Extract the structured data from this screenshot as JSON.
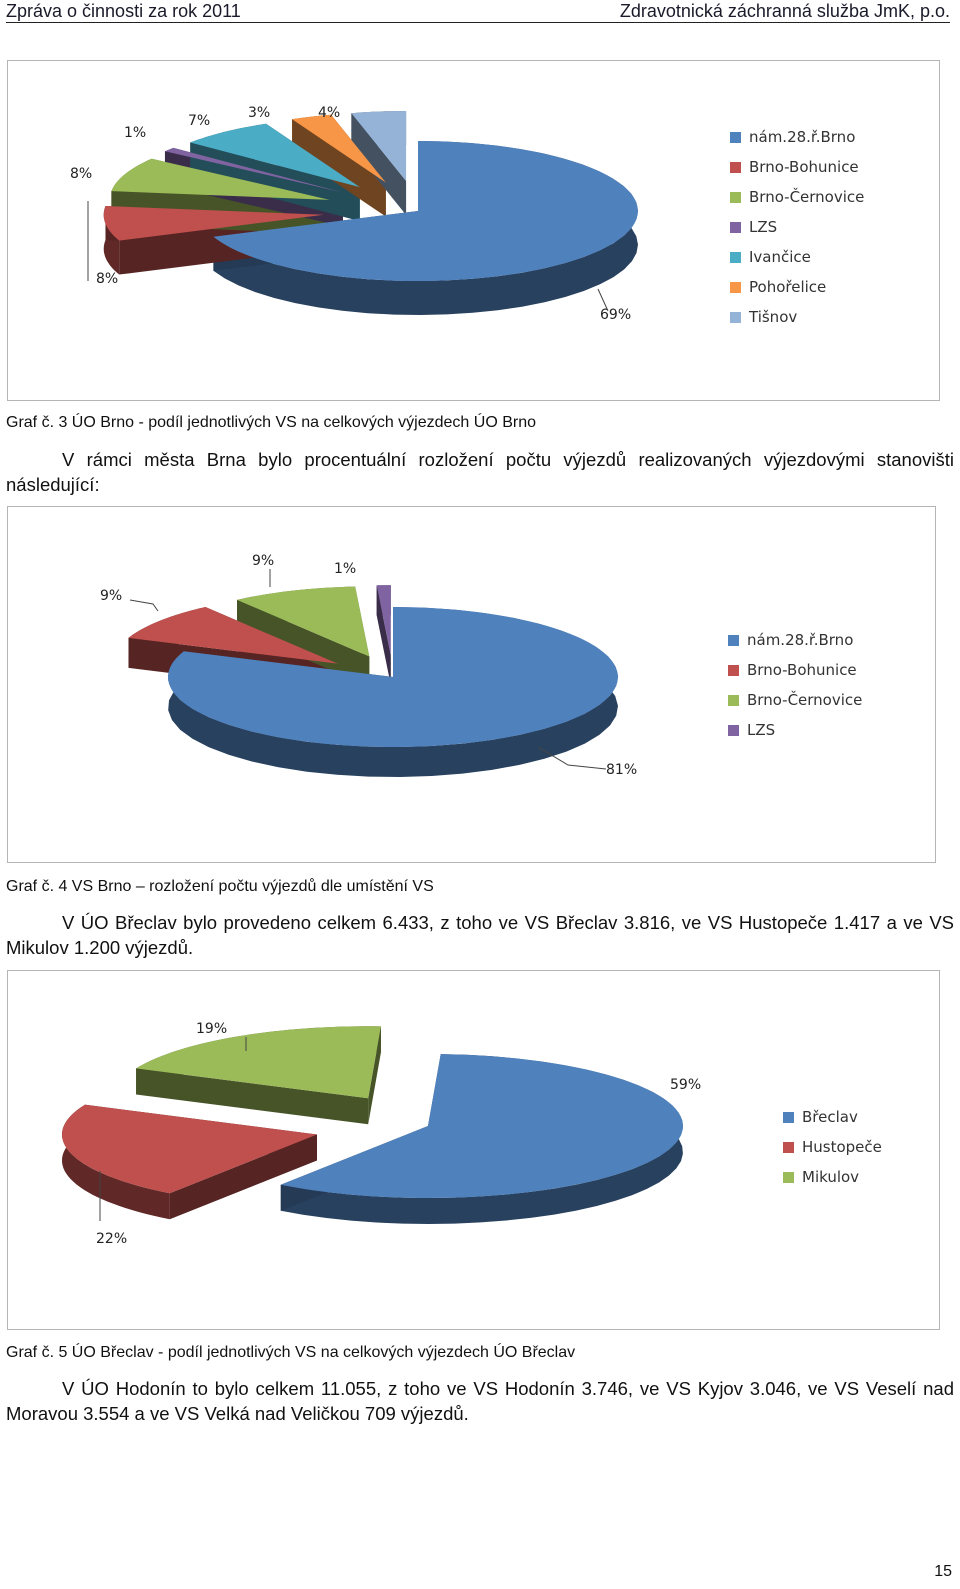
{
  "header": {
    "left": "Zpráva o činnosti za rok 2011",
    "right": "Zdravotnická záchranná služba JmK, p.o."
  },
  "captions": {
    "graf3": "Graf č. 3 ÚO Brno - podíl jednotlivých VS na celkových výjezdech ÚO Brno",
    "graf4": "Graf č. 4 VS Brno – rozložení počtu výjezdů dle umístění VS",
    "graf5": "Graf č. 5 ÚO Břeclav - podíl jednotlivých VS na celkových výjezdech ÚO Břeclav"
  },
  "paragraphs": {
    "p1": "V rámci města Brna bylo procentuální rozložení počtu výjezdů realizovaných výjezdovými stanovišti následující:",
    "p2": "V ÚO Břeclav bylo provedeno celkem 6.433, z toho ve VS Břeclav 3.816, ve VS Hustopeče 1.417 a ve VS Mikulov 1.200 výjezdů.",
    "p3": "V ÚO Hodonín to bylo celkem 11.055, z toho ve VS Hodonín 3.746, ve VS Kyjov 3.046, ve VS Veselí nad Moravou 3.554 a ve VS Velká nad Veličkou 709 výjezdů."
  },
  "page_number": "15",
  "chart_data": [
    {
      "type": "pie",
      "title": "",
      "categories": [
        "nám.28.ř.Brno",
        "Brno-Bohunice",
        "Brno-Černovice",
        "LZS",
        "Ivančice",
        "Pohořelice",
        "Tišnov"
      ],
      "values": [
        69,
        8,
        8,
        1,
        7,
        3,
        4
      ],
      "labels": [
        "69%",
        "8%",
        "8%",
        "1%",
        "7%",
        "3%",
        "4%"
      ],
      "colors": [
        "#4f81bd",
        "#c0504d",
        "#9bbb59",
        "#8064a2",
        "#4bacc6",
        "#f79646",
        "#95b3d7"
      ],
      "legend": "right"
    },
    {
      "type": "pie",
      "title": "",
      "categories": [
        "nám.28.ř.Brno",
        "Brno-Bohunice",
        "Brno-Černovice",
        "LZS"
      ],
      "values": [
        81,
        9,
        9,
        1
      ],
      "labels": [
        "81%",
        "9%",
        "9%",
        "1%"
      ],
      "colors": [
        "#4f81bd",
        "#c0504d",
        "#9bbb59",
        "#8064a2"
      ],
      "legend": "right"
    },
    {
      "type": "pie",
      "title": "",
      "categories": [
        "Břeclav",
        "Hustopeče",
        "Mikulov"
      ],
      "values": [
        59,
        22,
        19
      ],
      "labels": [
        "59%",
        "22%",
        "19%"
      ],
      "colors": [
        "#4f81bd",
        "#c0504d",
        "#9bbb59"
      ],
      "legend": "right"
    }
  ]
}
